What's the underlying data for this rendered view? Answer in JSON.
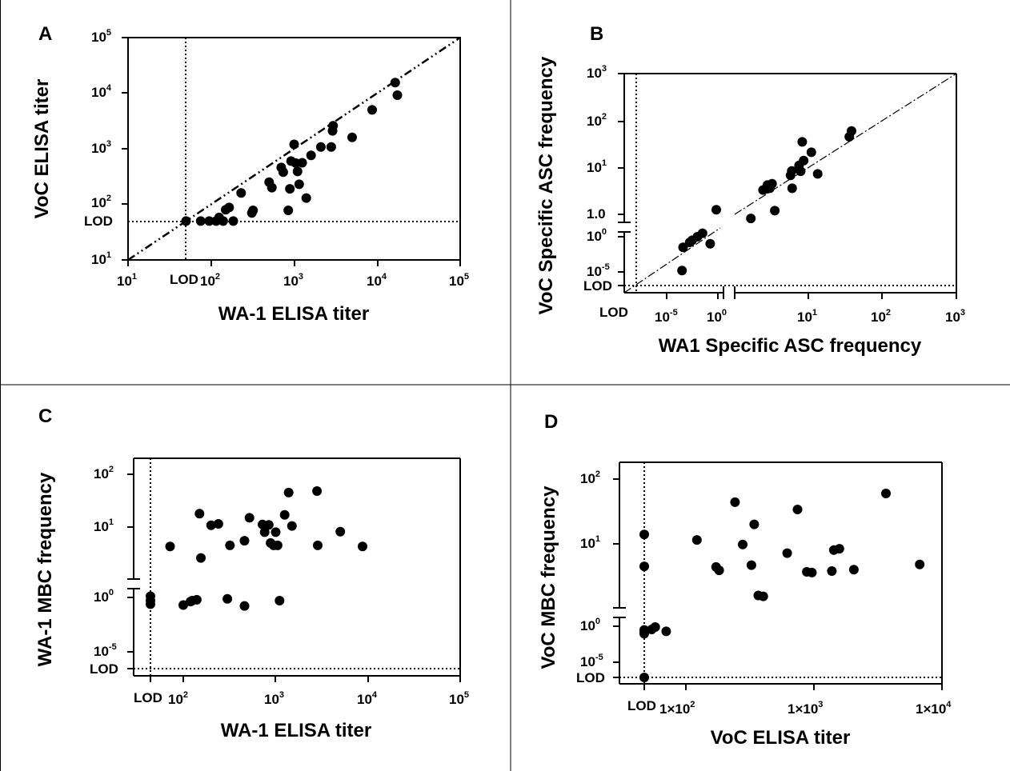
{
  "chart_data": [
    {
      "type": "scatter",
      "panel_label": "A",
      "xlabel": "WA-1 ELISA titer",
      "ylabel": "VoC ELISA titer",
      "x_scale": "log",
      "y_scale": "log",
      "xlim": [
        10,
        100000
      ],
      "ylim": [
        10,
        100000
      ],
      "x_ticks": [
        "10^1",
        "10^2",
        "10^3",
        "10^4",
        "10^5"
      ],
      "y_ticks": [
        "10^1",
        "10^2",
        "10^3",
        "10^4",
        "10^5"
      ],
      "lod_label": "LOD",
      "lod_x": 50,
      "lod_y": 50,
      "identity_line": true,
      "points": [
        [
          50,
          50
        ],
        [
          75,
          50
        ],
        [
          95,
          50
        ],
        [
          115,
          50
        ],
        [
          125,
          58
        ],
        [
          140,
          50
        ],
        [
          150,
          80
        ],
        [
          165,
          88
        ],
        [
          185,
          50
        ],
        [
          230,
          160
        ],
        [
          310,
          70
        ],
        [
          320,
          78
        ],
        [
          500,
          250
        ],
        [
          540,
          200
        ],
        [
          700,
          460
        ],
        [
          740,
          380
        ],
        [
          850,
          78
        ],
        [
          890,
          190
        ],
        [
          920,
          600
        ],
        [
          1000,
          1200
        ],
        [
          1050,
          550
        ],
        [
          1100,
          390
        ],
        [
          1150,
          230
        ],
        [
          1250,
          560
        ],
        [
          1400,
          130
        ],
        [
          1600,
          760
        ],
        [
          2100,
          1080
        ],
        [
          2800,
          1080
        ],
        [
          2900,
          2100
        ],
        [
          2950,
          2600
        ],
        [
          5000,
          1600
        ],
        [
          8700,
          5000
        ],
        [
          16500,
          15500
        ],
        [
          17500,
          9200
        ]
      ]
    },
    {
      "type": "scatter",
      "panel_label": "B",
      "xlabel": "WA1 Specific ASC frequency",
      "ylabel": "VoC Specific ASC frequency",
      "x_scale": "broken-log",
      "y_scale": "broken-log",
      "xlim": [
        0,
        1000
      ],
      "ylim": [
        0,
        1000
      ],
      "x_ticks": [
        "10^-5",
        "10^0",
        "10^1",
        "10^2",
        "10^3"
      ],
      "y_ticks": [
        "10^-5",
        "10^0",
        "1.0",
        "10^1",
        "10^2",
        "10^3"
      ],
      "lod_label": "LOD",
      "identity_line": true,
      "points_low": [
        [
          0.3,
          0.02
        ],
        [
          0.32,
          0.35
        ],
        [
          0.45,
          0.42
        ],
        [
          0.5,
          0.45
        ],
        [
          0.6,
          0.5
        ],
        [
          0.7,
          0.55
        ],
        [
          0.85,
          0.4
        ]
      ],
      "points": [
        [
          0.62,
          1.25
        ],
        [
          2.6,
          0.82
        ],
        [
          3.7,
          3.3
        ],
        [
          4.0,
          3.5
        ],
        [
          4.2,
          4.2
        ],
        [
          4.5,
          3.6
        ],
        [
          4.8,
          4.5
        ],
        [
          5.2,
          1.2
        ],
        [
          8.2,
          6.8
        ],
        [
          8.5,
          8.4
        ],
        [
          8.6,
          3.6
        ],
        [
          10.5,
          11
        ],
        [
          11,
          8.3
        ],
        [
          11.5,
          35
        ],
        [
          12,
          14
        ],
        [
          15,
          21
        ],
        [
          18,
          7.3
        ],
        [
          45,
          45
        ],
        [
          48,
          60
        ]
      ]
    },
    {
      "type": "scatter",
      "panel_label": "C",
      "xlabel": "WA-1 ELISA titer",
      "ylabel": "WA-1 MBC frequency",
      "x_scale": "log",
      "y_scale": "broken-log",
      "xlim": [
        50,
        100000
      ],
      "ylim": [
        0,
        100
      ],
      "x_ticks": [
        "10^2",
        "10^3",
        "10^4",
        "10^5"
      ],
      "y_ticks": [
        "10^-5",
        "10^0",
        "10^1",
        "10^2"
      ],
      "lod_label": "LOD",
      "lod_x": 50,
      "points_low": [
        [
          50,
          0.75
        ],
        [
          50,
          0.5
        ],
        [
          50,
          0.3
        ],
        [
          100,
          0.25
        ],
        [
          120,
          0.45
        ],
        [
          125,
          0.5
        ],
        [
          140,
          0.55
        ],
        [
          300,
          0.6
        ],
        [
          460,
          0.2
        ],
        [
          1100,
          0.5
        ]
      ],
      "points": [
        [
          72,
          4.3
        ],
        [
          150,
          18
        ],
        [
          155,
          2.6
        ],
        [
          200,
          10.8
        ],
        [
          240,
          11.5
        ],
        [
          320,
          4.5
        ],
        [
          460,
          5.5
        ],
        [
          520,
          15
        ],
        [
          720,
          11.2
        ],
        [
          760,
          8
        ],
        [
          840,
          11
        ],
        [
          880,
          5
        ],
        [
          950,
          4.5
        ],
        [
          1000,
          8
        ],
        [
          1050,
          4.5
        ],
        [
          1250,
          17
        ],
        [
          1380,
          45
        ],
        [
          1500,
          10.5
        ],
        [
          2800,
          48
        ],
        [
          2850,
          4.5
        ],
        [
          5000,
          8.2
        ],
        [
          8700,
          4.3
        ]
      ]
    },
    {
      "type": "scatter",
      "panel_label": "D",
      "xlabel": "VoC ELISA titer",
      "ylabel": "VoC MBC frequency",
      "x_scale": "log",
      "y_scale": "broken-log",
      "xlim": [
        40,
        10000
      ],
      "ylim": [
        0,
        100
      ],
      "x_ticks": [
        "1×10^2",
        "1×10^3",
        "1×10^4"
      ],
      "y_ticks": [
        "10^-5",
        "10^0",
        "10^1",
        "10^2"
      ],
      "lod_label": "LOD",
      "lod_x": 100,
      "points_low": [
        [
          100,
          0.7
        ],
        [
          100,
          0.5
        ],
        [
          100,
          0.3
        ],
        [
          108,
          0.75
        ],
        [
          115,
          1.0
        ],
        [
          140,
          0.55
        ],
        [
          100,
          0.02
        ]
      ],
      "points": [
        [
          100,
          14
        ],
        [
          100,
          4.5
        ],
        [
          122,
          11.5
        ],
        [
          172,
          4.4
        ],
        [
          182,
          3.9
        ],
        [
          242,
          44
        ],
        [
          278,
          9.8
        ],
        [
          325,
          4.7
        ],
        [
          342,
          20
        ],
        [
          368,
          1.6
        ],
        [
          402,
          1.55
        ],
        [
          618,
          7.2
        ],
        [
          745,
          34
        ],
        [
          880,
          3.7
        ],
        [
          965,
          3.6
        ],
        [
          1380,
          3.8
        ],
        [
          1430,
          8
        ],
        [
          1580,
          8.4
        ],
        [
          2050,
          4
        ],
        [
          3650,
          60
        ],
        [
          6700,
          4.8
        ]
      ]
    }
  ]
}
